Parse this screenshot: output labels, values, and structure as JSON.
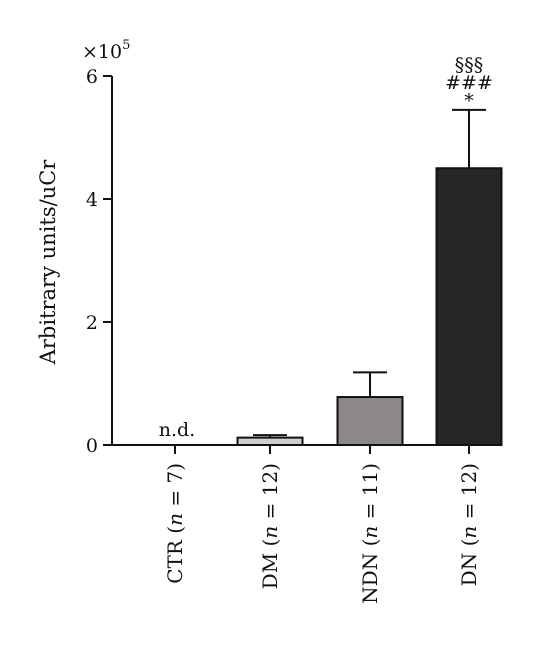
{
  "chart_data": {
    "type": "bar",
    "categories": [
      "CTR (n = 7)",
      "DM (n = 12)",
      "NDN (n = 11)",
      "DN (n = 12)"
    ],
    "category_parts": [
      {
        "name": "CTR",
        "n": "7"
      },
      {
        "name": "DM",
        "n": "12"
      },
      {
        "name": "NDN",
        "n": "11"
      },
      {
        "name": "DN",
        "n": "12"
      }
    ],
    "values": [
      null,
      0.12,
      0.78,
      4.5
    ],
    "errors": [
      null,
      0.04,
      0.4,
      0.95
    ],
    "value_labels": [
      "n.d.",
      "",
      "",
      ""
    ],
    "significance": [
      [],
      [],
      [],
      [
        "§§§",
        "###",
        "*"
      ]
    ],
    "bar_colors": [
      "#ffffff",
      "#cfcfcf",
      "#8c8888",
      "#262626"
    ],
    "ylabel": "Arbitrary units/uCr",
    "y_multiplier": "×10",
    "y_multiplier_exp": "5",
    "ylim": [
      0,
      6
    ],
    "yticks": [
      0,
      2,
      4,
      6
    ],
    "yticks_labels": [
      "0",
      "2",
      "4",
      "6"
    ],
    "grid": false,
    "legend": "none"
  }
}
